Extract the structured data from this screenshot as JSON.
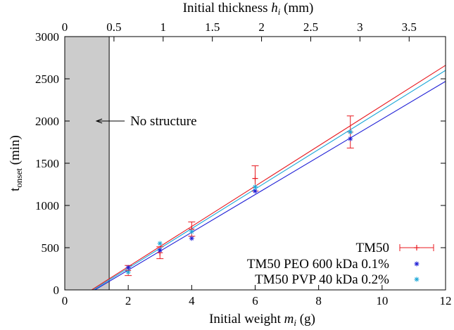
{
  "chart_data": {
    "type": "scatter",
    "xlabel_prefix": "Initial weight ",
    "xlabel_var": "m",
    "xlabel_sub": "i",
    "xlabel_suffix": " (g)",
    "x2label_prefix": "Initial thickness ",
    "x2label_var": "h",
    "x2label_sub": "i",
    "x2label_suffix": " (mm)",
    "ylabel_main": "t",
    "ylabel_sub": "onset",
    "ylabel_suffix": " (min)",
    "xlim": [
      0,
      12
    ],
    "ylim": [
      0,
      3000
    ],
    "x2lim": [
      0,
      3.87
    ],
    "xticks": [
      0,
      2,
      4,
      6,
      8,
      10,
      12
    ],
    "yticks": [
      0,
      500,
      1000,
      1500,
      2000,
      2500,
      3000
    ],
    "x2ticks": [
      "0",
      "0.5",
      "1",
      "1.5",
      "2",
      "2.5",
      "3",
      "3.5"
    ],
    "x2tick_values": [
      0,
      0.5,
      1,
      1.5,
      2,
      2.5,
      3,
      3.5
    ],
    "shaded_region_x": [
      0,
      1.4
    ],
    "annotation": {
      "text": "No structure",
      "arrow_tip": [
        1.0,
        2000
      ]
    },
    "grid": false,
    "legend_position": "bottom-right",
    "series": [
      {
        "name": "TM50",
        "color": "#e8191f",
        "marker": "plus",
        "points": [
          {
            "x": 2,
            "y": 230,
            "err": 60
          },
          {
            "x": 3,
            "y": 440,
            "err": 70
          },
          {
            "x": 4,
            "y": 720,
            "err": 85
          },
          {
            "x": 6,
            "y": 1320,
            "err": 150
          },
          {
            "x": 9,
            "y": 1870,
            "err": 190
          }
        ],
        "fit": [
          [
            0.85,
            0
          ],
          [
            12,
            2660
          ]
        ]
      },
      {
        "name": "TM50 PEO 600 kDa 0.1%",
        "color": "#1f1fd6",
        "marker": "star",
        "points": [
          {
            "x": 2,
            "y": 265
          },
          {
            "x": 3,
            "y": 470
          },
          {
            "x": 4,
            "y": 610
          },
          {
            "x": 6,
            "y": 1170
          },
          {
            "x": 9,
            "y": 1790
          }
        ],
        "fit": [
          [
            0.95,
            0
          ],
          [
            12,
            2470
          ]
        ]
      },
      {
        "name": "TM50 PVP 40 kDa 0.2%",
        "color": "#1ea8d8",
        "marker": "star",
        "points": [
          {
            "x": 2,
            "y": 210
          },
          {
            "x": 3,
            "y": 550
          },
          {
            "x": 4,
            "y": 690
          },
          {
            "x": 6,
            "y": 1220
          },
          {
            "x": 9,
            "y": 1870
          }
        ],
        "fit": [
          [
            0.9,
            0
          ],
          [
            12,
            2600
          ]
        ]
      }
    ]
  }
}
